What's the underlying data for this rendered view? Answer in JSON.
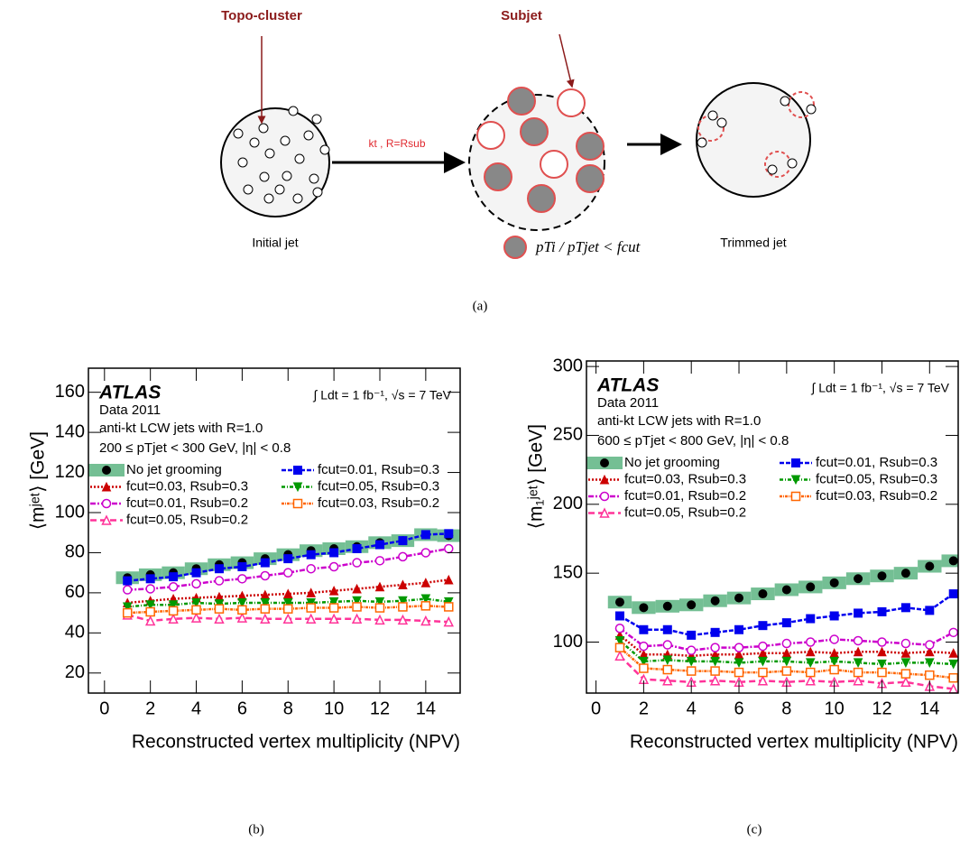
{
  "diagram": {
    "topo_label": "Topo-cluster",
    "subjet_label": "Subjet",
    "step_label": "kt , R=Rsub",
    "initial_label": "Initial jet",
    "trimmed_label": "Trimmed jet",
    "condition": "pTi / pTjet < fcut",
    "caption": "(a)"
  },
  "chart_data": [
    {
      "type": "scatter",
      "caption": "(b)",
      "ylabel": "⟨mʲᵉᵗ⟩ [GeV]",
      "xlabel": "Reconstructed vertex multiplicity (NPV)",
      "annotations": [
        "ATLAS",
        "Data 2011",
        "anti-kt LCW jets with R=1.0",
        "200 ≤ pTjet < 300 GeV, |η| < 0.8",
        "∫ Ldt = 1 fb⁻¹, √s = 7 TeV"
      ],
      "xlim": [
        -0.7,
        15.5
      ],
      "xticks": [
        0,
        2,
        4,
        6,
        8,
        10,
        12,
        14
      ],
      "ylim": [
        10,
        172
      ],
      "yticks": [
        20,
        40,
        60,
        80,
        100,
        120,
        140,
        160
      ],
      "x": [
        1,
        2,
        3,
        4,
        5,
        6,
        7,
        8,
        9,
        10,
        11,
        12,
        13,
        14,
        15
      ],
      "series": [
        {
          "name": "No jet grooming",
          "color": "#000000",
          "marker": "circle",
          "band": true,
          "values": [
            67.5,
            69,
            70,
            72,
            74,
            75,
            77,
            79,
            81,
            82,
            83,
            85,
            86,
            89,
            88.5
          ]
        },
        {
          "name": "fcut=0.03, Rsub=0.3",
          "color": "#cc0000",
          "marker": "triangle-up",
          "values": [
            55,
            56,
            57,
            57.5,
            58,
            58.5,
            59,
            59.5,
            60,
            61,
            62,
            63,
            64,
            65,
            66.5
          ]
        },
        {
          "name": "fcut=0.01, Rsub=0.2",
          "color": "#cc00cc",
          "marker": "circle-open",
          "values": [
            61.5,
            62,
            63,
            64.5,
            66,
            67,
            68.5,
            70,
            72,
            73,
            75,
            76,
            78,
            80,
            82
          ]
        },
        {
          "name": "fcut=0.05, Rsub=0.2",
          "color": "#ff3399",
          "marker": "triangle-open",
          "values": [
            49,
            46,
            47,
            47.5,
            47,
            47.5,
            47,
            47,
            47,
            47,
            47,
            46.5,
            46.5,
            46,
            45.5
          ]
        },
        {
          "name": "fcut=0.01, Rsub=0.3",
          "color": "#0000ee",
          "marker": "square",
          "values": [
            66,
            67,
            68,
            70,
            72,
            73,
            75,
            77,
            79,
            80,
            82,
            84,
            86,
            89,
            89.5
          ]
        },
        {
          "name": "fcut=0.05, Rsub=0.3",
          "color": "#009900",
          "marker": "triangle-down",
          "values": [
            53,
            54,
            54,
            55,
            54.5,
            55,
            55,
            55,
            55,
            55.5,
            56,
            55.5,
            56,
            57,
            55.5
          ]
        },
        {
          "name": "fcut=0.03, Rsub=0.2",
          "color": "#ff6600",
          "marker": "square-open",
          "values": [
            50,
            50.5,
            51,
            51.5,
            52,
            51.5,
            52,
            52,
            52.5,
            52.5,
            53,
            52.5,
            53,
            53.5,
            53
          ]
        }
      ]
    },
    {
      "type": "scatter",
      "caption": "(c)",
      "ylabel": "⟨m₁ʲᵉᵗ⟩ [GeV]",
      "xlabel": "Reconstructed vertex multiplicity (NPV)",
      "annotations": [
        "ATLAS",
        "Data 2011",
        "anti-kt LCW jets with R=1.0",
        "600 ≤ pTjet < 800 GeV, |η| < 0.8",
        "∫ Ldt = 1 fb⁻¹, √s = 7 TeV"
      ],
      "xlim": [
        -0.4,
        15.2
      ],
      "xticks": [
        0,
        2,
        4,
        6,
        8,
        10,
        12,
        14
      ],
      "ylim": [
        63,
        304
      ],
      "yticks": [
        100,
        150,
        200,
        250,
        300
      ],
      "x": [
        1,
        2,
        3,
        4,
        5,
        6,
        7,
        8,
        9,
        10,
        11,
        12,
        13,
        14,
        15
      ],
      "series": [
        {
          "name": "No jet grooming",
          "color": "#000000",
          "marker": "circle",
          "band": true,
          "values": [
            129,
            125,
            126,
            127,
            130,
            132,
            135,
            138,
            140,
            143,
            146,
            148,
            150,
            155,
            159
          ]
        },
        {
          "name": "fcut=0.03, Rsub=0.3",
          "color": "#cc0000",
          "marker": "triangle-up",
          "values": [
            105,
            91,
            91,
            90,
            91,
            91,
            92,
            92,
            93,
            92,
            93,
            93,
            92,
            93,
            92
          ]
        },
        {
          "name": "fcut=0.01, Rsub=0.2",
          "color": "#cc00cc",
          "marker": "circle-open",
          "values": [
            110,
            97,
            98,
            94,
            96,
            96,
            97,
            99,
            100,
            102,
            101,
            100,
            99,
            98,
            107
          ]
        },
        {
          "name": "fcut=0.05, Rsub=0.2",
          "color": "#ff3399",
          "marker": "triangle-open",
          "values": [
            90,
            73,
            72,
            71,
            72,
            71,
            72,
            71,
            72,
            71,
            72,
            70,
            71,
            68,
            66
          ]
        },
        {
          "name": "fcut=0.01, Rsub=0.3",
          "color": "#0000ee",
          "marker": "square",
          "values": [
            119,
            109,
            109,
            105,
            107,
            109,
            112,
            114,
            117,
            119,
            121,
            122,
            125,
            123,
            135
          ]
        },
        {
          "name": "fcut=0.05, Rsub=0.3",
          "color": "#009900",
          "marker": "triangle-down",
          "values": [
            101,
            86,
            87,
            86,
            86,
            85,
            86,
            86,
            85,
            86,
            85,
            84,
            85,
            85,
            84
          ]
        },
        {
          "name": "fcut=0.03, Rsub=0.2",
          "color": "#ff6600",
          "marker": "square-open",
          "values": [
            96,
            81,
            80,
            79,
            79,
            78,
            78,
            79,
            78,
            80,
            78,
            78,
            77,
            76,
            74
          ]
        }
      ]
    }
  ]
}
